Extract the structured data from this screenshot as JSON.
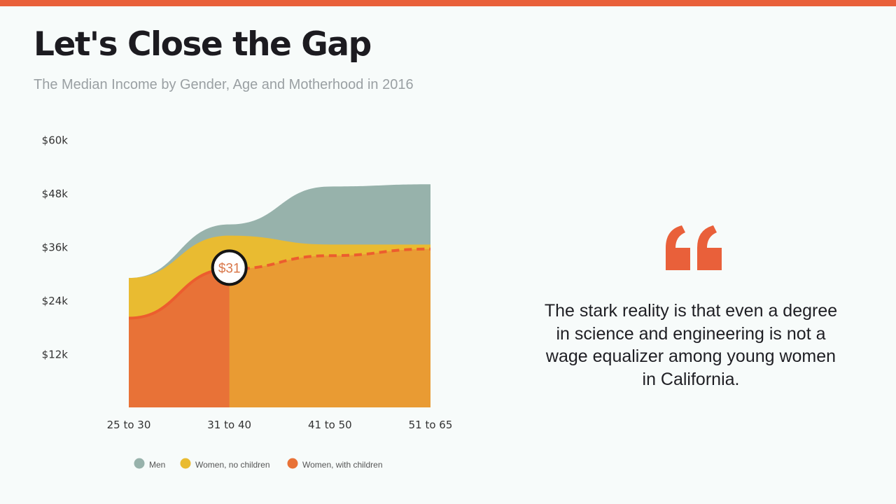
{
  "header": {
    "title": "Let's Close the Gap",
    "subtitle": "The Median Income by Gender, Age and Motherhood in 2016"
  },
  "quote": {
    "text": "The stark reality is that even a degree in science and engineering is not a wage equalizer among young women in California."
  },
  "colors": {
    "accent": "#e9603a",
    "men": "#97b2ab",
    "women_no_children": "#e9bb31",
    "women_with_children": "#e87237",
    "women_with_children_projected": "#e99b33"
  },
  "chart_data": {
    "type": "area",
    "categories": [
      "25 to 30",
      "31 to 40",
      "41 to 50",
      "51 to 65"
    ],
    "y_ticks": [
      "$12k",
      "$24k",
      "$36k",
      "$48k",
      "$60k"
    ],
    "y_tick_values": [
      12,
      24,
      36,
      48,
      60
    ],
    "ylim": [
      0,
      60
    ],
    "series": [
      {
        "name": "Men",
        "values": [
          29,
          41,
          49.5,
          50
        ]
      },
      {
        "name": "Women, no children",
        "values": [
          29,
          38.5,
          36.5,
          36.5
        ]
      },
      {
        "name": "Women, with children",
        "values": [
          20,
          31,
          34,
          35.5
        ]
      }
    ],
    "annotation": {
      "label": "$31",
      "category": "31 to 40",
      "value": 31
    },
    "grid": false,
    "legend_position": "bottom"
  }
}
